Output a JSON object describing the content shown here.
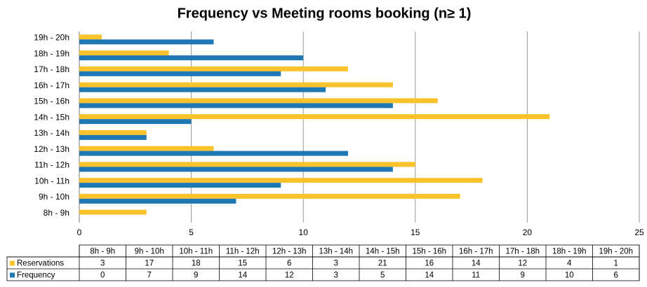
{
  "chart_data": {
    "type": "bar",
    "orientation": "horizontal",
    "title": "Frequency vs Meeting rooms booking (n≥ 1)",
    "categories": [
      "8h - 9h",
      "9h - 10h",
      "10h - 11h",
      "11h - 12h",
      "12h - 13h",
      "13h - 14h",
      "14h - 15h",
      "15h - 16h",
      "16h - 17h",
      "17h - 18h",
      "18h - 19h",
      "19h - 20h"
    ],
    "series": [
      {
        "name": "Reservations",
        "color": "#fac22b",
        "values": [
          3,
          17,
          18,
          15,
          6,
          3,
          21,
          16,
          14,
          12,
          4,
          1
        ]
      },
      {
        "name": "Frequency",
        "color": "#1f78b4",
        "values": [
          0,
          7,
          9,
          14,
          12,
          3,
          5,
          14,
          11,
          9,
          10,
          6
        ]
      }
    ],
    "xlim": [
      0,
      25
    ],
    "xticks": [
      0,
      5,
      10,
      15,
      20,
      25
    ],
    "grid": true
  }
}
